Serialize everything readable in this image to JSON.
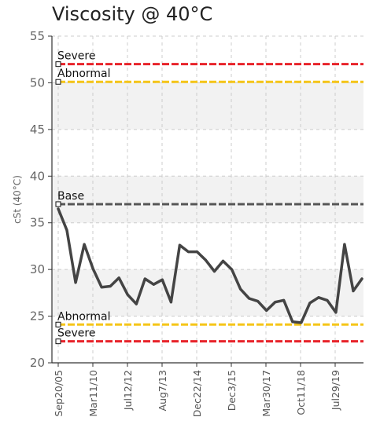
{
  "chart_data": {
    "type": "line",
    "title": "Viscosity @ 40°C",
    "ylabel": "cSt (40°C)",
    "xlabel": "",
    "ylim": [
      20,
      55
    ],
    "yticks": [
      20,
      25,
      30,
      35,
      40,
      45,
      50,
      55
    ],
    "grid": true,
    "x_tick_labels": [
      "Sep20/05",
      "Mar11/10",
      "Jul12/12",
      "Aug7/13",
      "Dec22/14",
      "Dec3/15",
      "Mar30/17",
      "Oct11/18",
      "Jul29/19"
    ],
    "series": [
      {
        "values": [
          36.5,
          34.2,
          28.6,
          32.7,
          30.1,
          28.1,
          28.2,
          29.1,
          27.3,
          26.3,
          29.0,
          28.4,
          28.9,
          26.5,
          32.6,
          31.9,
          31.9,
          31.0,
          29.8,
          30.9,
          30.0,
          27.9,
          26.9,
          26.6,
          25.6,
          26.5,
          26.7,
          24.4,
          24.3,
          26.4,
          27.0,
          26.7,
          25.4,
          32.7,
          27.7,
          29.0
        ]
      }
    ],
    "reference_lines": [
      {
        "label": "Severe",
        "value": 52.0,
        "color": "#e8232a"
      },
      {
        "label": "Abnormal",
        "value": 50.1,
        "color": "#f5c518"
      },
      {
        "label": "Base",
        "value": 37.0,
        "color": "#555555"
      },
      {
        "label": "Abnormal",
        "value": 24.1,
        "color": "#f5c518"
      },
      {
        "label": "Severe",
        "value": 22.3,
        "color": "#e8232a"
      }
    ],
    "colors": {
      "line": "#444444",
      "band": "#f2f2f2",
      "grid": "#cccccc"
    }
  }
}
